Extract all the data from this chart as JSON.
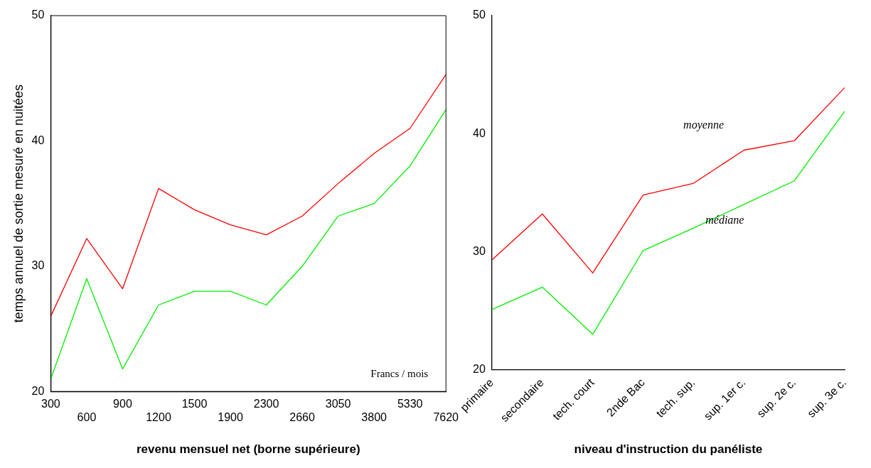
{
  "chart_data": [
    {
      "type": "line",
      "ylabel": "temps annuel de sortie mesuré en nuitées",
      "xlabel": "revenu mensuel net (borne supérieure)",
      "categories": [
        "300",
        "600",
        "900",
        "1200",
        "1500",
        "1900",
        "2300",
        "2660",
        "3050",
        "3800",
        "5330",
        "7620"
      ],
      "series": [
        {
          "color": "#ff0000",
          "values": [
            26,
            32.2,
            28.2,
            36.2,
            34.5,
            33.3,
            32.5,
            34,
            36.6,
            39,
            41,
            45.3
          ]
        },
        {
          "color": "#00ee00",
          "values": [
            21,
            29,
            21.8,
            26.9,
            28,
            28,
            26.9,
            30,
            34,
            35,
            38,
            42.5
          ]
        }
      ],
      "ylim": [
        20,
        50
      ],
      "yticks": [
        20,
        30,
        40,
        50
      ],
      "grid": false,
      "legend": false,
      "marker": "none",
      "line_style": "solid",
      "annotations": [
        "Francs / mois"
      ]
    },
    {
      "type": "line",
      "xlabel": "niveau d'instruction du panéliste",
      "categories": [
        "primaire",
        "secondaire",
        "tech. court",
        "2nde Bac",
        "tech. sup.",
        "sup. 1er c.",
        "sup. 2e c.",
        "sup. 3e c."
      ],
      "series": [
        {
          "color": "#ff0000",
          "values": [
            29.3,
            33.2,
            28.2,
            34.8,
            35.8,
            38.6,
            39.4,
            43.9
          ]
        },
        {
          "color": "#00ee00",
          "values": [
            25.1,
            27,
            23,
            30.1,
            32,
            34,
            36,
            41.9
          ]
        }
      ],
      "ylim": [
        20,
        50
      ],
      "yticks": [
        20,
        30,
        40,
        50
      ],
      "grid": false,
      "legend": false,
      "marker": "none",
      "line_style": "solid",
      "annotations": [
        "moyenne",
        "médiane"
      ]
    }
  ]
}
